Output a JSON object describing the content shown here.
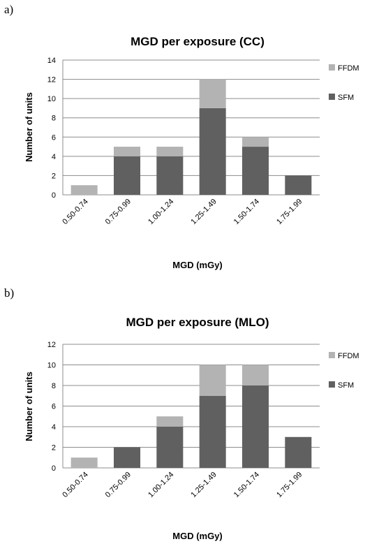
{
  "panels": [
    {
      "label": "a)"
    },
    {
      "label": "b)"
    }
  ],
  "chart_data": [
    {
      "type": "bar",
      "stacked": true,
      "title": "MGD per exposure (CC)",
      "xlabel": "MGD (mGy)",
      "ylabel": "Number of units",
      "categories": [
        "0.50-0.74",
        "0.75-0.99",
        "1.00-1.24",
        "1.25-1.49",
        "1.50-1.74",
        "1.75-1.99"
      ],
      "series": [
        {
          "name": "SFM",
          "values": [
            0,
            4,
            4,
            9,
            5,
            2
          ],
          "color": "#606060"
        },
        {
          "name": "FFDM",
          "values": [
            1,
            1,
            1,
            3,
            1,
            0
          ],
          "color": "#b3b3b3"
        }
      ],
      "ylim": [
        0,
        14
      ],
      "yticks": [
        0,
        2,
        4,
        6,
        8,
        10,
        12,
        14
      ],
      "grid": true,
      "legend": "right"
    },
    {
      "type": "bar",
      "stacked": true,
      "title": "MGD per exposure (MLO)",
      "xlabel": "MGD (mGy)",
      "ylabel": "Number of units",
      "categories": [
        "0.50-0.74",
        "0.75-0.99",
        "1.00-1.24",
        "1.25-1.49",
        "1.50-1.74",
        "1.75-1.99"
      ],
      "series": [
        {
          "name": "SFM",
          "values": [
            0,
            2,
            4,
            7,
            8,
            3
          ],
          "color": "#606060"
        },
        {
          "name": "FFDM",
          "values": [
            1,
            0,
            1,
            3,
            2,
            0
          ],
          "color": "#b3b3b3"
        }
      ],
      "ylim": [
        0,
        12
      ],
      "yticks": [
        0,
        2,
        4,
        6,
        8,
        10,
        12
      ],
      "grid": true,
      "legend": "right"
    }
  ]
}
